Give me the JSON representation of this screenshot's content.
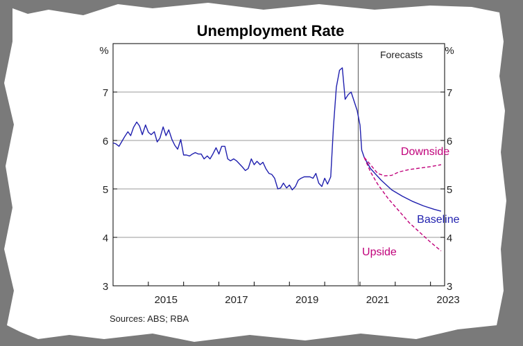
{
  "chart_data": {
    "type": "line",
    "title": "Unemployment Rate",
    "y_unit_left": "%",
    "y_unit_right": "%",
    "forecast_label": "Forecasts",
    "source": "Sources: ABS; RBA",
    "xlim": [
      2014,
      2023.4
    ],
    "ylim": [
      3,
      8
    ],
    "forecast_start": 2020.95,
    "x_ticks": [
      2015,
      2017,
      2019,
      2021,
      2023
    ],
    "x_tick_labels": [
      "2015",
      "2017",
      "2019",
      "2021",
      "2023"
    ],
    "y_ticks": [
      3,
      4,
      5,
      6,
      7
    ],
    "y_tick_labels": [
      "3",
      "4",
      "5",
      "6",
      "7"
    ],
    "grid": true,
    "colors": {
      "history": "#1f1fae",
      "baseline": "#1f1fae",
      "scenario": "#c0007a",
      "forecast_line": "#555555"
    },
    "series": [
      {
        "key": "history",
        "style": "solid",
        "points": [
          [
            2014.0,
            5.95
          ],
          [
            2014.08,
            5.93
          ],
          [
            2014.17,
            5.88
          ],
          [
            2014.25,
            5.98
          ],
          [
            2014.33,
            6.08
          ],
          [
            2014.42,
            6.18
          ],
          [
            2014.5,
            6.1
          ],
          [
            2014.58,
            6.27
          ],
          [
            2014.67,
            6.38
          ],
          [
            2014.75,
            6.3
          ],
          [
            2014.83,
            6.12
          ],
          [
            2014.92,
            6.32
          ],
          [
            2015.0,
            6.17
          ],
          [
            2015.08,
            6.12
          ],
          [
            2015.17,
            6.18
          ],
          [
            2015.25,
            5.97
          ],
          [
            2015.33,
            6.05
          ],
          [
            2015.42,
            6.28
          ],
          [
            2015.5,
            6.1
          ],
          [
            2015.58,
            6.22
          ],
          [
            2015.67,
            6.02
          ],
          [
            2015.75,
            5.9
          ],
          [
            2015.83,
            5.82
          ],
          [
            2015.92,
            6.02
          ],
          [
            2016.0,
            5.7
          ],
          [
            2016.08,
            5.7
          ],
          [
            2016.17,
            5.68
          ],
          [
            2016.25,
            5.72
          ],
          [
            2016.33,
            5.75
          ],
          [
            2016.42,
            5.72
          ],
          [
            2016.5,
            5.72
          ],
          [
            2016.58,
            5.62
          ],
          [
            2016.67,
            5.68
          ],
          [
            2016.75,
            5.62
          ],
          [
            2016.83,
            5.72
          ],
          [
            2016.92,
            5.85
          ],
          [
            2017.0,
            5.72
          ],
          [
            2017.08,
            5.88
          ],
          [
            2017.17,
            5.88
          ],
          [
            2017.25,
            5.62
          ],
          [
            2017.33,
            5.58
          ],
          [
            2017.42,
            5.62
          ],
          [
            2017.5,
            5.58
          ],
          [
            2017.58,
            5.52
          ],
          [
            2017.67,
            5.45
          ],
          [
            2017.75,
            5.38
          ],
          [
            2017.83,
            5.42
          ],
          [
            2017.92,
            5.62
          ],
          [
            2018.0,
            5.5
          ],
          [
            2018.08,
            5.57
          ],
          [
            2018.17,
            5.5
          ],
          [
            2018.25,
            5.55
          ],
          [
            2018.33,
            5.42
          ],
          [
            2018.42,
            5.32
          ],
          [
            2018.5,
            5.3
          ],
          [
            2018.58,
            5.22
          ],
          [
            2018.67,
            5.0
          ],
          [
            2018.75,
            5.02
          ],
          [
            2018.83,
            5.12
          ],
          [
            2018.92,
            5.02
          ],
          [
            2019.0,
            5.08
          ],
          [
            2019.08,
            4.98
          ],
          [
            2019.17,
            5.05
          ],
          [
            2019.25,
            5.18
          ],
          [
            2019.33,
            5.22
          ],
          [
            2019.42,
            5.25
          ],
          [
            2019.5,
            5.25
          ],
          [
            2019.58,
            5.25
          ],
          [
            2019.67,
            5.22
          ],
          [
            2019.75,
            5.32
          ],
          [
            2019.83,
            5.12
          ],
          [
            2019.92,
            5.05
          ],
          [
            2020.0,
            5.22
          ],
          [
            2020.08,
            5.1
          ],
          [
            2020.17,
            5.25
          ],
          [
            2020.25,
            6.3
          ],
          [
            2020.33,
            7.1
          ],
          [
            2020.42,
            7.45
          ],
          [
            2020.5,
            7.5
          ],
          [
            2020.58,
            6.85
          ],
          [
            2020.67,
            6.95
          ],
          [
            2020.75,
            7.0
          ],
          [
            2020.83,
            6.82
          ],
          [
            2020.92,
            6.62
          ],
          [
            2021.0,
            6.32
          ],
          [
            2021.05,
            5.8
          ],
          [
            2021.12,
            5.65
          ]
        ]
      },
      {
        "key": "baseline",
        "style": "solid",
        "label": "Baseline",
        "points": [
          [
            2021.12,
            5.65
          ],
          [
            2021.3,
            5.42
          ],
          [
            2021.6,
            5.18
          ],
          [
            2021.9,
            4.98
          ],
          [
            2022.2,
            4.85
          ],
          [
            2022.5,
            4.74
          ],
          [
            2022.8,
            4.65
          ],
          [
            2023.1,
            4.58
          ],
          [
            2023.3,
            4.54
          ]
        ]
      },
      {
        "key": "downside",
        "style": "dashed",
        "label": "Downside",
        "points": [
          [
            2021.12,
            5.65
          ],
          [
            2021.3,
            5.5
          ],
          [
            2021.5,
            5.32
          ],
          [
            2021.7,
            5.27
          ],
          [
            2021.9,
            5.28
          ],
          [
            2022.1,
            5.35
          ],
          [
            2022.4,
            5.4
          ],
          [
            2022.7,
            5.43
          ],
          [
            2023.0,
            5.46
          ],
          [
            2023.3,
            5.5
          ]
        ]
      },
      {
        "key": "upside",
        "style": "dashed",
        "label": "Upside",
        "points": [
          [
            2021.12,
            5.65
          ],
          [
            2021.3,
            5.35
          ],
          [
            2021.5,
            5.1
          ],
          [
            2021.8,
            4.8
          ],
          [
            2022.1,
            4.55
          ],
          [
            2022.4,
            4.3
          ],
          [
            2022.7,
            4.1
          ],
          [
            2023.0,
            3.9
          ],
          [
            2023.3,
            3.72
          ]
        ]
      }
    ],
    "annotations": [
      {
        "text": "Downside",
        "x": 2022.85,
        "y": 5.7,
        "color_key": "scenario"
      },
      {
        "text": "Baseline",
        "x": 2023.22,
        "y": 4.3,
        "color_key": "baseline"
      },
      {
        "text": "Upside",
        "x": 2021.55,
        "y": 3.63,
        "color_key": "scenario"
      }
    ]
  }
}
